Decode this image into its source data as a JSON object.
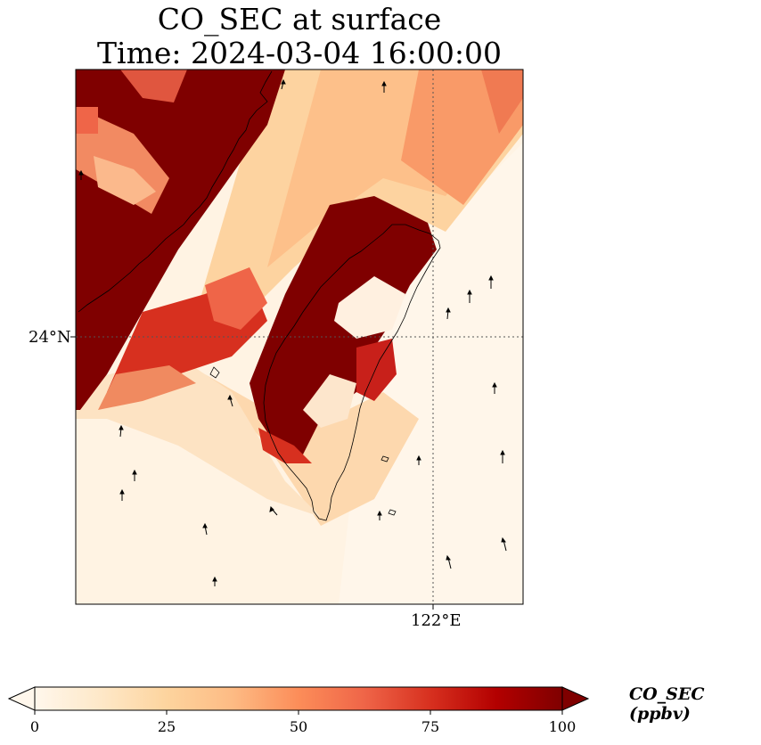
{
  "title": {
    "line1": "CO_SEC at surface",
    "line2": "Time: 2024-03-04 16:00:00"
  },
  "map": {
    "region": "Taiwan",
    "projection_grid": "gridlines dotted",
    "latitude_label": "24°N",
    "longitude_label": "122°E",
    "field": "CO_SEC",
    "features": [
      "coastline",
      "wind-vectors"
    ]
  },
  "colorbar": {
    "label": "CO_SEC (ppbv)",
    "min": 0,
    "max": 100,
    "ticks": [
      "0",
      "25",
      "50",
      "75",
      "100"
    ],
    "colormap": "OrRd",
    "colors": [
      "#fff7ec",
      "#fee8c8",
      "#fdd49e",
      "#fdbb84",
      "#fc8d59",
      "#ef6548",
      "#d7301f",
      "#b30000",
      "#7f0000"
    ]
  }
}
